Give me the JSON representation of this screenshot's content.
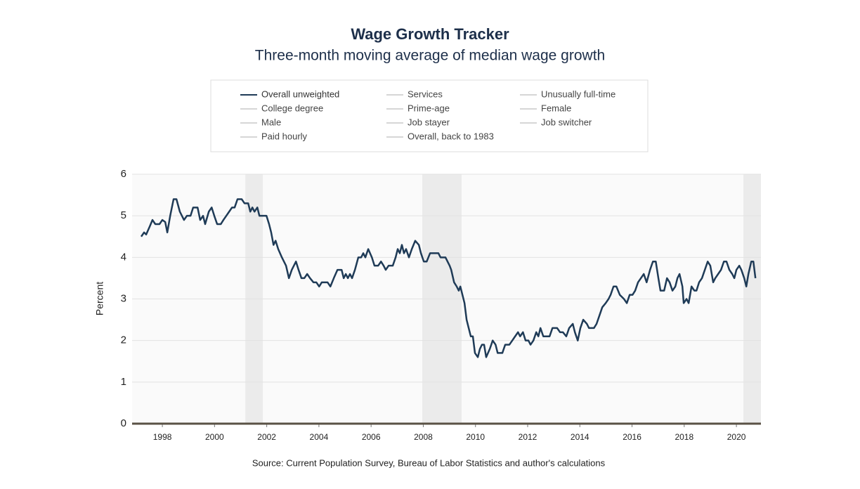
{
  "chart_data": {
    "type": "line",
    "title": "Wage Growth Tracker",
    "subtitle": "Three-month moving average of median wage growth",
    "y_label": "Percent",
    "source": "Source: Current Population Survey, Bureau of Labor Statistics and author's calculations",
    "xlim": [
      1996.84,
      2020.94
    ],
    "xticks": [
      1998,
      2000,
      2002,
      2004,
      2006,
      2008,
      2010,
      2012,
      2014,
      2016,
      2018,
      2020
    ],
    "ylim": [
      0,
      6
    ],
    "yticks": [
      0,
      1,
      2,
      3,
      4,
      5,
      6
    ],
    "grid": true,
    "recessions": [
      [
        2001.18,
        2001.85
      ],
      [
        2007.96,
        2009.47
      ],
      [
        2020.27,
        2020.94
      ]
    ],
    "recession_color": "#ebebeb",
    "x": [
      1997.19,
      1997.3,
      1997.38,
      1997.52,
      1997.62,
      1997.73,
      1997.89,
      1998.0,
      1998.11,
      1998.19,
      1998.3,
      1998.43,
      1998.54,
      1998.67,
      1998.83,
      1998.94,
      1999.08,
      1999.18,
      1999.35,
      1999.45,
      1999.56,
      1999.64,
      1999.78,
      1999.89,
      1999.99,
      2000.1,
      2000.24,
      2000.34,
      2000.45,
      2000.56,
      2000.67,
      2000.77,
      2000.88,
      2001.04,
      2001.15,
      2001.29,
      2001.37,
      2001.45,
      2001.53,
      2001.64,
      2001.72,
      2001.88,
      2001.99,
      2002.09,
      2002.17,
      2002.26,
      2002.34,
      2002.44,
      2002.58,
      2002.74,
      2002.85,
      2002.96,
      2003.12,
      2003.22,
      2003.33,
      2003.44,
      2003.55,
      2003.66,
      2003.79,
      2003.9,
      2004.01,
      2004.11,
      2004.33,
      2004.44,
      2004.57,
      2004.71,
      2004.87,
      2004.95,
      2005.03,
      2005.11,
      2005.19,
      2005.27,
      2005.38,
      2005.51,
      2005.62,
      2005.7,
      2005.78,
      2005.89,
      2006.03,
      2006.13,
      2006.27,
      2006.38,
      2006.48,
      2006.56,
      2006.67,
      2006.83,
      2006.94,
      2007.02,
      2007.1,
      2007.18,
      2007.26,
      2007.34,
      2007.45,
      2007.56,
      2007.69,
      2007.83,
      2007.91,
      2008.02,
      2008.13,
      2008.26,
      2008.45,
      2008.58,
      2008.66,
      2008.85,
      2009.01,
      2009.07,
      2009.18,
      2009.28,
      2009.36,
      2009.42,
      2009.5,
      2009.58,
      2009.66,
      2009.74,
      2009.82,
      2009.9,
      2009.98,
      2010.09,
      2010.17,
      2010.25,
      2010.33,
      2010.41,
      2010.55,
      2010.66,
      2010.77,
      2010.85,
      2011.03,
      2011.14,
      2011.3,
      2011.41,
      2011.52,
      2011.63,
      2011.71,
      2011.82,
      2011.92,
      2012.03,
      2012.11,
      2012.22,
      2012.33,
      2012.41,
      2012.49,
      2012.6,
      2012.84,
      2012.95,
      2013.13,
      2013.24,
      2013.35,
      2013.48,
      2013.59,
      2013.73,
      2013.81,
      2013.92,
      2014.02,
      2014.13,
      2014.27,
      2014.35,
      2014.54,
      2014.64,
      2014.75,
      2014.86,
      2014.99,
      2015.1,
      2015.18,
      2015.29,
      2015.4,
      2015.53,
      2015.69,
      2015.8,
      2015.91,
      2016.02,
      2016.12,
      2016.23,
      2016.34,
      2016.45,
      2016.56,
      2016.69,
      2016.8,
      2016.91,
      2017.01,
      2017.09,
      2017.23,
      2017.34,
      2017.44,
      2017.55,
      2017.66,
      2017.74,
      2017.82,
      2017.93,
      2017.98,
      2018.09,
      2018.17,
      2018.28,
      2018.39,
      2018.47,
      2018.57,
      2018.68,
      2018.79,
      2018.9,
      2019.0,
      2019.11,
      2019.19,
      2019.3,
      2019.41,
      2019.52,
      2019.62,
      2019.73,
      2019.84,
      2019.92,
      2020.0,
      2020.11,
      2020.19,
      2020.3,
      2020.38,
      2020.46,
      2020.57,
      2020.65,
      2020.73
    ],
    "series": [
      {
        "name": "Overall unweighted",
        "color": "#1f3b57",
        "values": [
          4.5,
          4.6,
          4.55,
          4.75,
          4.9,
          4.8,
          4.8,
          4.9,
          4.85,
          4.6,
          5.0,
          5.4,
          5.4,
          5.1,
          4.9,
          5.0,
          5.0,
          5.2,
          5.2,
          4.9,
          5.0,
          4.8,
          5.1,
          5.2,
          5.0,
          4.8,
          4.8,
          4.9,
          5.0,
          5.1,
          5.2,
          5.2,
          5.4,
          5.4,
          5.3,
          5.3,
          5.1,
          5.2,
          5.1,
          5.2,
          5.0,
          5.0,
          5.0,
          4.8,
          4.6,
          4.3,
          4.4,
          4.2,
          4.0,
          3.8,
          3.5,
          3.7,
          3.9,
          3.7,
          3.5,
          3.5,
          3.6,
          3.5,
          3.4,
          3.4,
          3.3,
          3.4,
          3.4,
          3.3,
          3.5,
          3.7,
          3.7,
          3.5,
          3.6,
          3.5,
          3.6,
          3.5,
          3.7,
          4.0,
          4.0,
          4.1,
          4.0,
          4.2,
          4.0,
          3.8,
          3.8,
          3.9,
          3.8,
          3.7,
          3.8,
          3.8,
          4.0,
          4.2,
          4.1,
          4.3,
          4.1,
          4.2,
          4.0,
          4.2,
          4.4,
          4.3,
          4.1,
          3.9,
          3.9,
          4.1,
          4.1,
          4.1,
          4.0,
          4.0,
          3.8,
          3.7,
          3.4,
          3.3,
          3.2,
          3.3,
          3.1,
          2.9,
          2.5,
          2.3,
          2.1,
          2.1,
          1.7,
          1.6,
          1.8,
          1.9,
          1.9,
          1.6,
          1.8,
          2.0,
          1.9,
          1.7,
          1.7,
          1.9,
          1.9,
          2.0,
          2.1,
          2.2,
          2.1,
          2.2,
          2.0,
          2.0,
          1.9,
          2.0,
          2.2,
          2.1,
          2.3,
          2.1,
          2.1,
          2.3,
          2.3,
          2.2,
          2.2,
          2.1,
          2.3,
          2.4,
          2.2,
          2.0,
          2.3,
          2.5,
          2.4,
          2.3,
          2.3,
          2.4,
          2.6,
          2.8,
          2.9,
          3.0,
          3.1,
          3.3,
          3.3,
          3.1,
          3.0,
          2.9,
          3.1,
          3.1,
          3.2,
          3.4,
          3.5,
          3.6,
          3.4,
          3.7,
          3.9,
          3.9,
          3.5,
          3.2,
          3.2,
          3.5,
          3.4,
          3.2,
          3.3,
          3.5,
          3.6,
          3.3,
          2.9,
          3.0,
          2.9,
          3.3,
          3.2,
          3.2,
          3.4,
          3.5,
          3.7,
          3.9,
          3.8,
          3.4,
          3.5,
          3.6,
          3.7,
          3.9,
          3.9,
          3.7,
          3.6,
          3.5,
          3.7,
          3.8,
          3.7,
          3.5,
          3.3,
          3.6,
          3.9,
          3.9,
          3.5
        ]
      }
    ],
    "legend_inactive": [
      {
        "name": "Services",
        "color": "#d6d6d6"
      },
      {
        "name": "Unusually full-time",
        "color": "#d6d6d6"
      },
      {
        "name": "College degree",
        "color": "#d6d6d6"
      },
      {
        "name": "Prime-age",
        "color": "#d6d6d6"
      },
      {
        "name": "Female",
        "color": "#d6d6d6"
      },
      {
        "name": "Male",
        "color": "#d6d6d6"
      },
      {
        "name": "Job stayer",
        "color": "#d6d6d6"
      },
      {
        "name": "Job switcher",
        "color": "#d6d6d6"
      },
      {
        "name": "Paid hourly",
        "color": "#d6d6d6"
      },
      {
        "name": "Overall, back to 1983",
        "color": "#d6d6d6"
      }
    ]
  }
}
